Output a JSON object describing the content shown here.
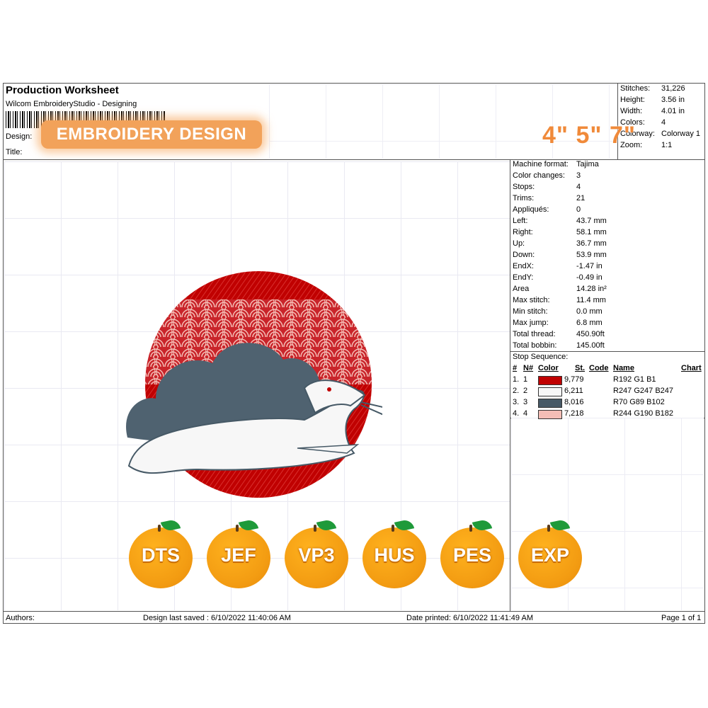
{
  "header": {
    "title": "Production Worksheet",
    "subtitle": "Wilcom EmbroideryStudio - Designing",
    "design_label": "Design:",
    "title_label": "Title:",
    "badge": "EMBROIDERY DESIGN",
    "sizes": "4\" 5\" 7\""
  },
  "summary": [
    {
      "label": "Stitches:",
      "value": "31,226"
    },
    {
      "label": "Height:",
      "value": "3.56 in"
    },
    {
      "label": "Width:",
      "value": "4.01 in"
    },
    {
      "label": "Colors:",
      "value": "4"
    },
    {
      "label": "Colorway:",
      "value": "Colorway 1"
    },
    {
      "label": "Zoom:",
      "value": "1:1"
    }
  ],
  "details": [
    {
      "label": "Machine format:",
      "value": "Tajima"
    },
    {
      "label": "Color changes:",
      "value": "3"
    },
    {
      "label": "Stops:",
      "value": "4"
    },
    {
      "label": "Trims:",
      "value": "21"
    },
    {
      "label": "Appliqués:",
      "value": "0"
    },
    {
      "label": "Left:",
      "value": "43.7 mm"
    },
    {
      "label": "Right:",
      "value": "58.1 mm"
    },
    {
      "label": "Up:",
      "value": "36.7 mm"
    },
    {
      "label": "Down:",
      "value": "53.9 mm"
    },
    {
      "label": "EndX:",
      "value": "-1.47 in"
    },
    {
      "label": "EndY:",
      "value": "-0.49 in"
    },
    {
      "label": "Area",
      "value": " 14.28 in²"
    },
    {
      "label": "Max stitch:",
      "value": "11.4 mm"
    },
    {
      "label": "Min stitch:",
      "value": "0.0 mm"
    },
    {
      "label": "Max jump:",
      "value": "6.8 mm"
    },
    {
      "label": "Total thread:",
      "value": "450.90ft"
    },
    {
      "label": "Total bobbin:",
      "value": "145.00ft"
    }
  ],
  "stop_sequence": {
    "title": "Stop Sequence:",
    "headers": {
      "num": "#",
      "n": "N#",
      "color": "Color",
      "st": "St.",
      "code": "Code",
      "name": "Name",
      "chart": "Chart"
    },
    "rows": [
      {
        "num": "1.",
        "n": "1",
        "swatch": "#c00101",
        "st": "9,779",
        "name": "R192 G1 B1"
      },
      {
        "num": "2.",
        "n": "2",
        "swatch": "#f7f7f7",
        "st": "6,211",
        "name": "R247 G247 B247"
      },
      {
        "num": "3.",
        "n": "3",
        "swatch": "#465966",
        "st": "8,016",
        "name": "R70 G89 B102"
      },
      {
        "num": "4.",
        "n": "4",
        "swatch": "#f4beb6",
        "st": "7,218",
        "name": "R244 G190 B182"
      }
    ]
  },
  "formats": [
    "DTS",
    "JEF",
    "VP3",
    "HUS",
    "PES",
    "EXP"
  ],
  "footer": {
    "authors": "Authors:",
    "saved": "Design last saved : 6/10/2022 11:40:06 AM",
    "printed": "Date printed: 6/10/2022 11:41:49 AM",
    "page": "Page 1 of 1"
  },
  "colors": {
    "red": "#c00101",
    "white": "#f7f7f7",
    "slate": "#465966",
    "pink": "#f4beb6",
    "orange": "#f39c12"
  }
}
